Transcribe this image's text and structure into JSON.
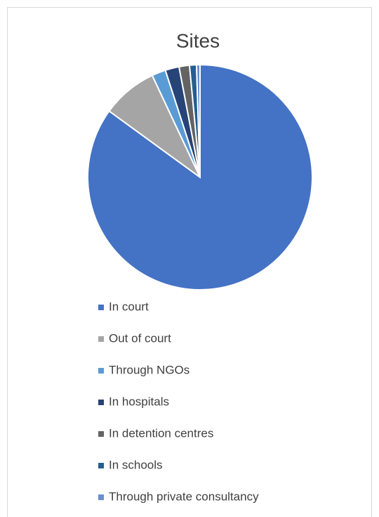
{
  "chart_data": {
    "type": "pie",
    "title": "Sites",
    "categories": [
      "In court",
      "Out of court",
      "Through NGOs",
      "In hospitals",
      "In detention centres",
      "In schools",
      "Through private consultancy"
    ],
    "values": [
      85,
      8,
      2,
      2,
      1.5,
      1,
      0.5
    ],
    "colors": [
      "#4472c4",
      "#a5a5a5",
      "#5b9bd5",
      "#264478",
      "#636363",
      "#255e91",
      "#698ed0"
    ]
  }
}
